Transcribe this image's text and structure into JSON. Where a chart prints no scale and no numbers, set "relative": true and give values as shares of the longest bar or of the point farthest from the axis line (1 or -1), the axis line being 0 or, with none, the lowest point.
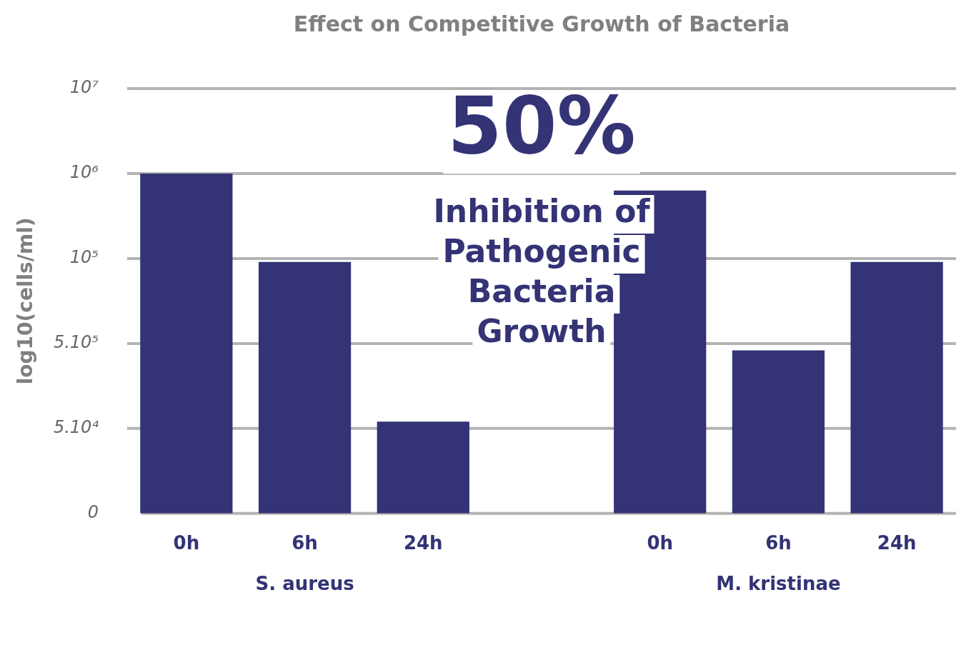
{
  "chart_data": {
    "type": "bar",
    "title": "Effect on Competitive Growth of Bacteria",
    "ylabel": "log10(cells/ml)",
    "categories": [
      "0h",
      "6h",
      "24h",
      null,
      "0h",
      "6h",
      "24h"
    ],
    "values": [
      1,
      0.74,
      0.27,
      null,
      0.95,
      0.48,
      0.74
    ],
    "relative": true,
    "color": "#333376",
    "grid": "y",
    "legend": false,
    "annotations": [
      "50%",
      "Inhibition of Pathogenic Bacteria Growth",
      "S. aureus",
      "M. kristinae",
      "0",
      "5.10⁴",
      "5.10⁵",
      "10⁵",
      "10⁶",
      "10⁷"
    ]
  }
}
